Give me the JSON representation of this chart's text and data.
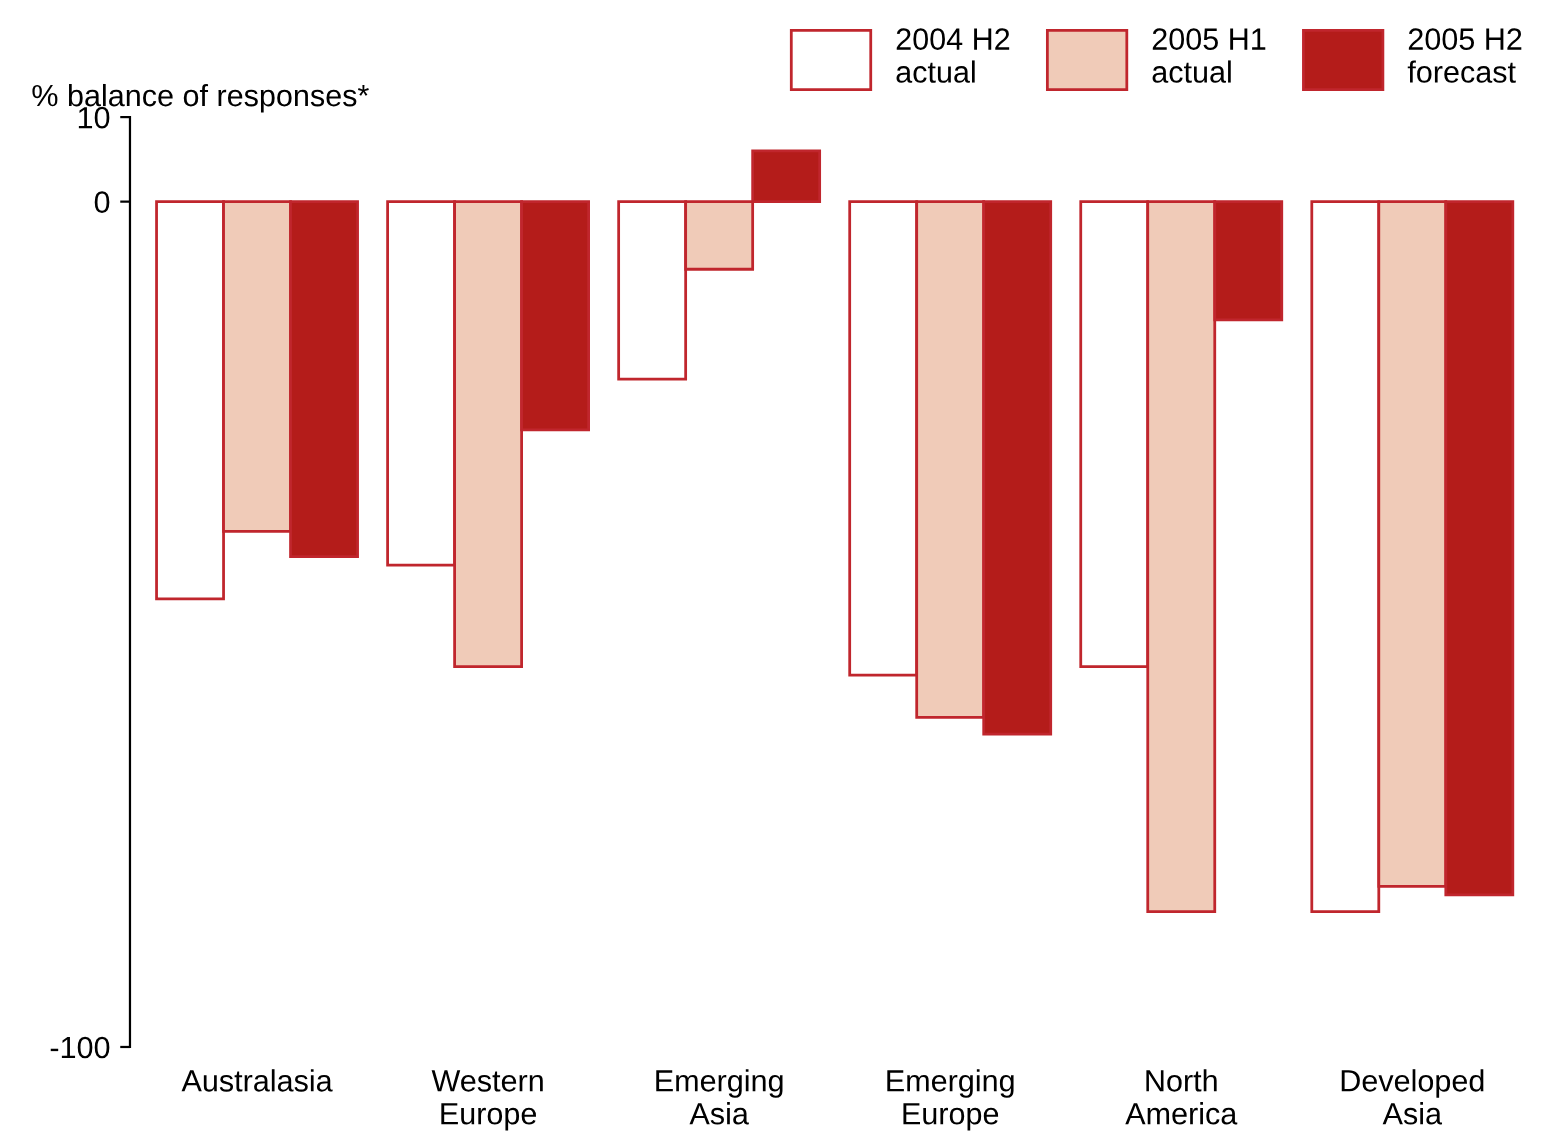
{
  "chart_data": {
    "type": "bar",
    "ylabel": "% balance of responses*",
    "categories": [
      "Australasia",
      "Western\nEurope",
      "Emerging\nAsia",
      "Emerging\nEurope",
      "North\nAmerica",
      "Developed\nAsia"
    ],
    "series": [
      {
        "name": "2004 H2\nactual",
        "color": "#ffffff",
        "values": [
          -47,
          -43,
          -21,
          -56,
          -55,
          -84
        ]
      },
      {
        "name": "2005 H1\nactual",
        "color": "#f0cbb8",
        "values": [
          -39,
          -55,
          -8,
          -61,
          -84,
          -81
        ]
      },
      {
        "name": "2005 H2\nforecast",
        "color": "#b41c1a",
        "values": [
          -42,
          -27,
          6,
          -63,
          -14,
          -82
        ]
      }
    ],
    "ylim": [
      -100,
      10
    ],
    "yticks": [
      10,
      0,
      -100
    ],
    "grid": false,
    "legend": "top right"
  }
}
